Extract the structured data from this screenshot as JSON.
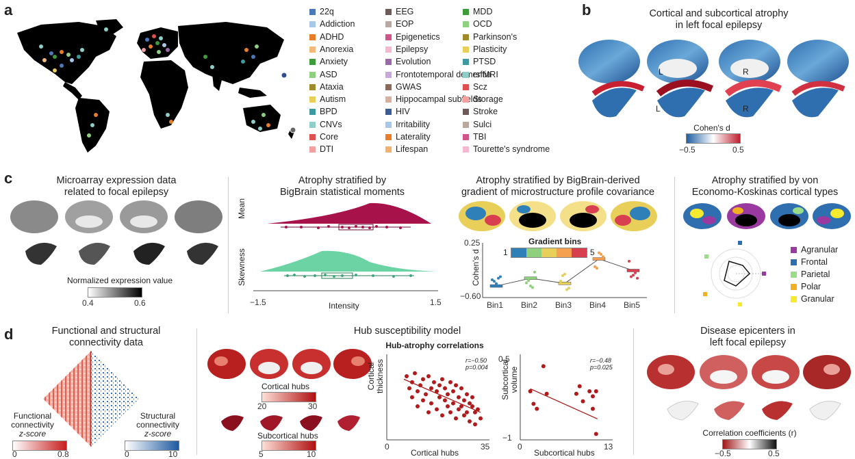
{
  "panels": {
    "a": {
      "label": "a",
      "legend": [
        {
          "name": "22q",
          "color": "#4a78b8"
        },
        {
          "name": "Addiction",
          "color": "#a8c8e8"
        },
        {
          "name": "ADHD",
          "color": "#e87d2a"
        },
        {
          "name": "Anorexia",
          "color": "#f5b97a"
        },
        {
          "name": "Anxiety",
          "color": "#3f9a3a"
        },
        {
          "name": "ASD",
          "color": "#8fd07e"
        },
        {
          "name": "Ataxia",
          "color": "#a08a2a"
        },
        {
          "name": "Autism",
          "color": "#e8cf5a"
        },
        {
          "name": "BPD",
          "color": "#3f9aa0"
        },
        {
          "name": "CNVs",
          "color": "#8fcfc8"
        },
        {
          "name": "Core",
          "color": "#e05050"
        },
        {
          "name": "DTI",
          "color": "#f5a0a0"
        },
        {
          "name": "EEG",
          "color": "#6e5a58"
        },
        {
          "name": "EOP",
          "color": "#b8a8a0"
        },
        {
          "name": "Epigenetics",
          "color": "#d2558a"
        },
        {
          "name": "Epilepsy",
          "color": "#f5b8d0"
        },
        {
          "name": "Evolution",
          "color": "#9a6aa8"
        },
        {
          "name": "Frontotemporal dementia",
          "color": "#c8a8d8"
        },
        {
          "name": "GWAS",
          "color": "#8a6a5a"
        },
        {
          "name": "Hippocampal subfields",
          "color": "#d8b0a0"
        },
        {
          "name": "HIV",
          "color": "#3a5a98"
        },
        {
          "name": "Irritability",
          "color": "#a8c8e8"
        },
        {
          "name": "Laterality",
          "color": "#e87d2a"
        },
        {
          "name": "Lifespan",
          "color": "#f5b070"
        },
        {
          "name": "MDD",
          "color": "#3f9a3a"
        },
        {
          "name": "OCD",
          "color": "#8fd07e"
        },
        {
          "name": "Parkinson's",
          "color": "#a08a2a"
        },
        {
          "name": "Plasticity",
          "color": "#e8cf5a"
        },
        {
          "name": "PTSD",
          "color": "#3f9aa0"
        },
        {
          "name": "rsfMRI",
          "color": "#8fcfc8"
        },
        {
          "name": "Scz",
          "color": "#e05050"
        },
        {
          "name": "Storage",
          "color": "#f5a0a0"
        },
        {
          "name": "Stroke",
          "color": "#6e5a58"
        },
        {
          "name": "Sulci",
          "color": "#b8a8a0"
        },
        {
          "name": "TBI",
          "color": "#d2558a"
        },
        {
          "name": "Tourette's syndrome",
          "color": "#f5b8d0"
        }
      ]
    },
    "b": {
      "label": "b",
      "title_line1": "Cortical and subcortical atrophy",
      "title_line2": "in left focal epilepsy",
      "hemi_L": "L",
      "hemi_R": "R",
      "hemi_L2": "L",
      "hemi_R2": "R",
      "colorbar_label": "Cohen's d",
      "tick_min": "−0.5",
      "tick_max": "0.5"
    },
    "c": {
      "label": "c",
      "c1": {
        "title_line1": "Microarray expression data",
        "title_line2": "related to focal epilepsy",
        "colorbar_label": "Normalized expression value",
        "tick_min": "0.4",
        "tick_max": "0.6"
      },
      "c2": {
        "title_line1": "Atrophy stratified by",
        "title_line2": "BigBrain statistical moments",
        "ylabel_top": "Mean",
        "ylabel_bottom": "Skewness",
        "xlabel": "Intensity",
        "tick_min": "−1.5",
        "tick_max": "1.5"
      },
      "c3": {
        "title_line1": "Atrophy stratified by BigBrain-derived",
        "title_line2": "gradient of microstructure profile covariance",
        "legend_title": "Gradient bins",
        "legend_min": "1",
        "legend_max": "5",
        "ylabel": "Cohen's d",
        "ytick_top": "0.25",
        "ytick_bottom": "−0.60",
        "categories": [
          "Bin1",
          "Bin2",
          "Bin3",
          "Bin4",
          "Bin5"
        ],
        "bin_colors": [
          "#2f7fb8",
          "#8fd07e",
          "#e8cf5a",
          "#f5a050",
          "#d84050"
        ]
      },
      "c4": {
        "title_line1": "Atrophy stratified by von",
        "title_line2": "Economo-Koskinas cortical types",
        "types": [
          {
            "name": "Agranular",
            "color": "#9a3aa0"
          },
          {
            "name": "Frontal",
            "color": "#2f6fb0"
          },
          {
            "name": "Parietal",
            "color": "#9adc8a"
          },
          {
            "name": "Polar",
            "color": "#f0b020"
          },
          {
            "name": "Granular",
            "color": "#f5ea30"
          }
        ]
      }
    },
    "d": {
      "label": "d",
      "d1": {
        "title_line1": "Functional and structural",
        "title_line2": "connectivity data",
        "func_line1": "Functional",
        "func_line2": "connectivity",
        "func_line3": "z-score",
        "struct_line1": "Structural",
        "struct_line2": "connectivity",
        "struct_line3": "z-score",
        "func_min": "0",
        "func_max": "0.8",
        "struct_min": "0",
        "struct_max": "10"
      },
      "d2": {
        "title": "Hub susceptibility model",
        "subtitle": "Hub-atrophy correlations",
        "cortical_hubs_label": "Cortical hubs",
        "cortical_min": "20",
        "cortical_max": "30",
        "subcortical_hubs_label": "Subcortical hubs",
        "subcortical_min": "5",
        "subcortical_max": "10",
        "scatter1": {
          "ylabel_line1": "Cortical",
          "ylabel_line2": "thickness",
          "xlabel": "Cortical hubs",
          "xmin": "0",
          "xmax": "35",
          "stat_r": "r=−0.50",
          "stat_p": "p=0.004"
        },
        "scatter2": {
          "ylabel_line1": "Subcortical",
          "ylabel_line2": "volume",
          "xlabel": "Subcortical hubs",
          "xmin": "0",
          "xmax": "13",
          "ytick_top": "0.5",
          "ytick_bottom": "−1",
          "stat_r": "r=−0.48",
          "stat_p": "p=0.025"
        }
      },
      "d3": {
        "title_line1": "Disease epicenters in",
        "title_line2": "left focal epilepsy",
        "colorbar_label": "Correlation coefficients (r)",
        "tick_min": "−0.5",
        "tick_max": "0.5"
      }
    }
  },
  "chart_data": [
    {
      "type": "scatter",
      "title": "",
      "xlabel": "Cortical hubs",
      "ylabel": "Cortical thickness",
      "xlim": [
        0,
        35
      ],
      "points": [
        [
          6,
          0.3
        ],
        [
          7,
          0.1
        ],
        [
          8,
          -0.05
        ],
        [
          8,
          0.2
        ],
        [
          9,
          0.35
        ],
        [
          10,
          0.05
        ],
        [
          10,
          -0.2
        ],
        [
          11,
          0.15
        ],
        [
          12,
          0.25
        ],
        [
          12,
          -0.1
        ],
        [
          13,
          0.0
        ],
        [
          14,
          0.3
        ],
        [
          14,
          -0.3
        ],
        [
          15,
          0.1
        ],
        [
          15,
          -0.15
        ],
        [
          16,
          0.2
        ],
        [
          17,
          0.05
        ],
        [
          17,
          -0.25
        ],
        [
          18,
          0.15
        ],
        [
          18,
          -0.05
        ],
        [
          19,
          0.25
        ],
        [
          19,
          -0.35
        ],
        [
          20,
          0.1
        ],
        [
          20,
          -0.1
        ],
        [
          21,
          0.0
        ],
        [
          21,
          -0.2
        ],
        [
          22,
          0.2
        ],
        [
          22,
          -0.3
        ],
        [
          23,
          0.05
        ],
        [
          23,
          -0.15
        ],
        [
          24,
          0.15
        ],
        [
          24,
          -0.4
        ],
        [
          25,
          -0.05
        ],
        [
          25,
          -0.25
        ],
        [
          26,
          0.1
        ],
        [
          26,
          -0.2
        ],
        [
          27,
          -0.1
        ],
        [
          27,
          -0.35
        ],
        [
          28,
          0.0
        ],
        [
          28,
          -0.3
        ],
        [
          29,
          -0.15
        ],
        [
          29,
          -0.45
        ],
        [
          30,
          -0.2
        ],
        [
          30,
          -0.05
        ],
        [
          31,
          -0.3
        ],
        [
          31,
          -0.5
        ],
        [
          32,
          -0.25
        ],
        [
          33,
          -0.4
        ]
      ],
      "fit": [
        [
          5,
          0.25
        ],
        [
          33,
          -0.3
        ]
      ]
    },
    {
      "type": "scatter",
      "title": "",
      "xlabel": "Subcortical hubs",
      "ylabel": "Subcortical volume",
      "xlim": [
        0,
        13
      ],
      "ylim": [
        -1,
        0.5
      ],
      "points": [
        [
          1,
          -0.1
        ],
        [
          1.5,
          -0.35
        ],
        [
          2,
          -0.45
        ],
        [
          3,
          0.4
        ],
        [
          3.5,
          -0.15
        ],
        [
          8,
          -0.15
        ],
        [
          8.5,
          0.0
        ],
        [
          9,
          -0.3
        ],
        [
          10,
          -0.1
        ],
        [
          10.5,
          -0.2
        ],
        [
          10.5,
          -0.45
        ],
        [
          11,
          -0.1
        ],
        [
          11,
          -0.95
        ]
      ],
      "fit": [
        [
          1,
          -0.05
        ],
        [
          11.2,
          -0.65
        ]
      ]
    },
    {
      "type": "line",
      "title": "",
      "xlabel": "",
      "ylabel": "Cohen's d",
      "categories": [
        "Bin1",
        "Bin2",
        "Bin3",
        "Bin4",
        "Bin5"
      ],
      "values": [
        -0.42,
        -0.3,
        -0.38,
        0.0,
        -0.18
      ],
      "ylim": [
        -0.6,
        0.25
      ]
    }
  ]
}
